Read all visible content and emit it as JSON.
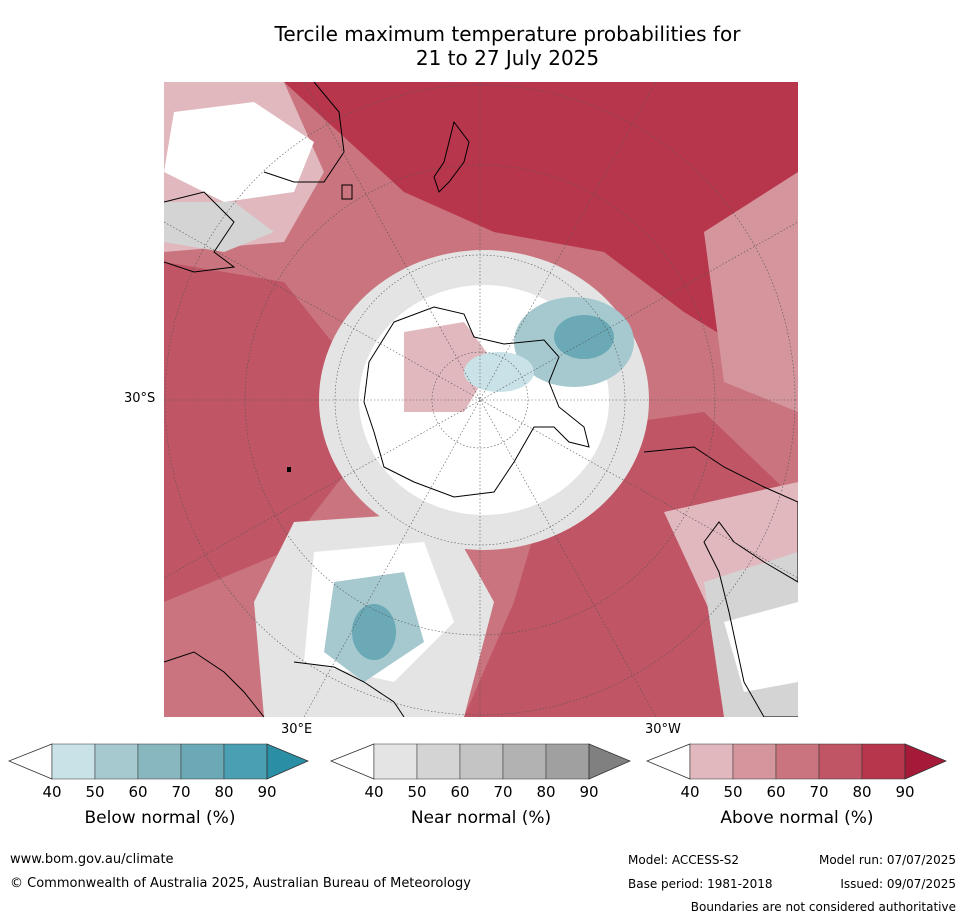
{
  "title": {
    "line1": "Tercile maximum temperature probabilities for",
    "line2": "21 to 27 July 2025"
  },
  "map": {
    "lat_label": "30°S",
    "lon_labels": {
      "east": "30°E",
      "west": "30°W"
    },
    "colors": {
      "above": [
        "#ffffff",
        "#e0b8bd",
        "#d4959d",
        "#c9747e",
        "#c05566",
        "#b8364c",
        "#a51a38"
      ],
      "near": [
        "#ffffff",
        "#e4e4e4",
        "#d4d4d4",
        "#c4c4c4",
        "#b2b2b2",
        "#a0a0a0",
        "#808080"
      ],
      "below": [
        "#ffffff",
        "#c8e2e8",
        "#a6c9cf",
        "#89b7bf",
        "#6aa9b5",
        "#4aa0b2",
        "#2a8ea4"
      ],
      "land_outline": "#000000"
    }
  },
  "colorbars": [
    {
      "name": "Below normal (%)",
      "ticks": [
        "40",
        "50",
        "60",
        "70",
        "80",
        "90"
      ],
      "palette": "below"
    },
    {
      "name": "Near normal (%)",
      "ticks": [
        "40",
        "50",
        "60",
        "70",
        "80",
        "90"
      ],
      "palette": "near"
    },
    {
      "name": "Above normal (%)",
      "ticks": [
        "40",
        "50",
        "60",
        "70",
        "80",
        "90"
      ],
      "palette": "above"
    }
  ],
  "footer": {
    "url": "www.bom.gov.au/climate",
    "copyright": "© Commonwealth of Australia 2025, Australian Bureau of Meteorology",
    "model": "Model: ACCESS-S2",
    "base_period": "Base period: 1981-2018",
    "model_run": "Model run: 07/07/2025",
    "issued": "Issued: 09/07/2025",
    "disclaimer": "Boundaries are not considered authoritative"
  }
}
